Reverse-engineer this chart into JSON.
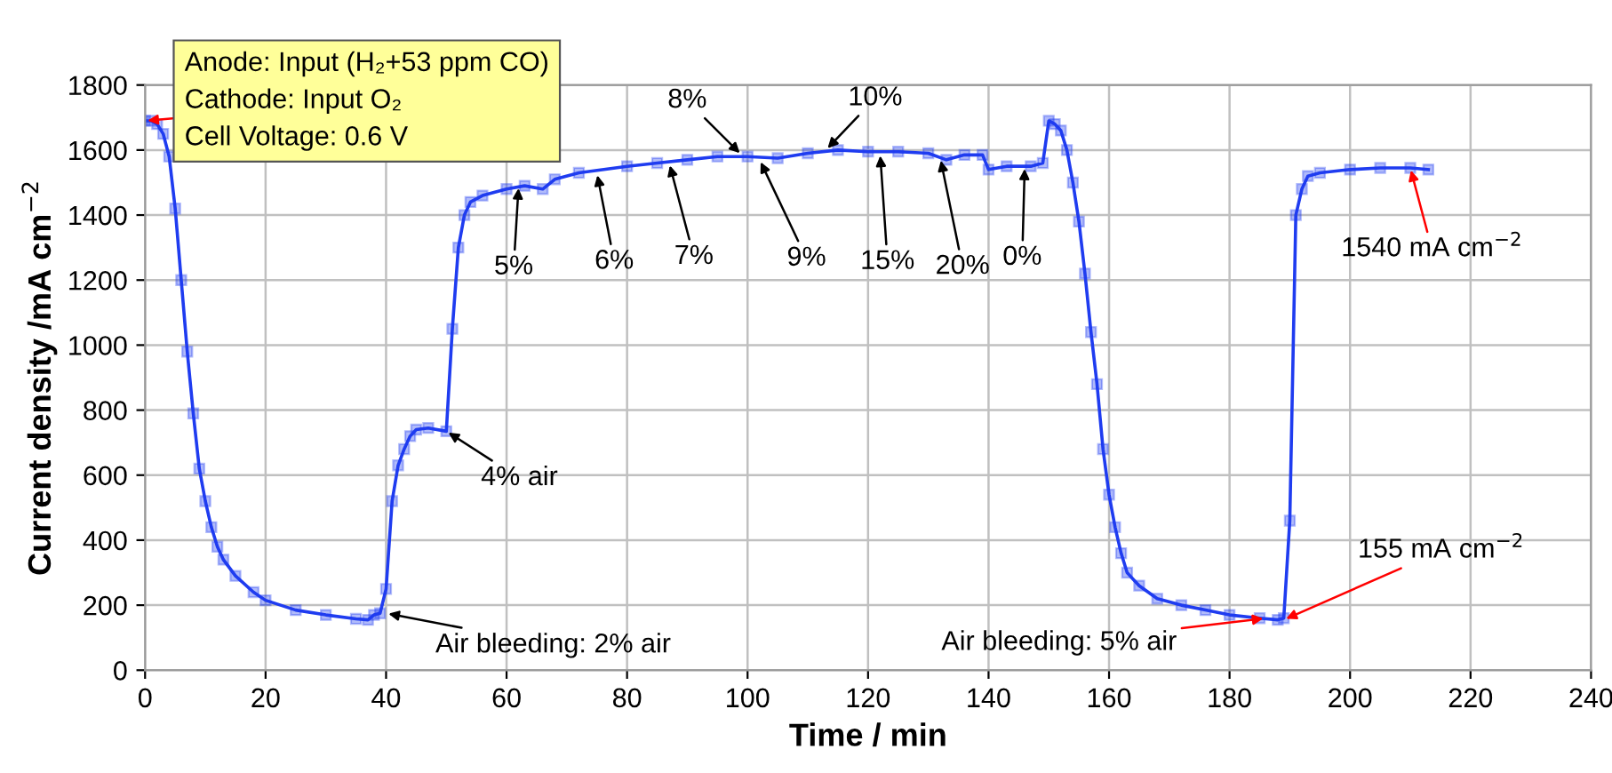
{
  "chart_data": {
    "type": "line",
    "xlabel": "Time / min",
    "ylabel": "Current density /mA cm$^{−2}$",
    "xlim": [
      0,
      240
    ],
    "ylim": [
      0,
      1800
    ],
    "xticks": [
      0,
      20,
      40,
      60,
      80,
      100,
      120,
      140,
      160,
      180,
      200,
      220,
      240
    ],
    "yticks": [
      0,
      200,
      400,
      600,
      800,
      1000,
      1200,
      1400,
      1600,
      1800
    ],
    "grid": true,
    "marker": "square",
    "line_style": "solid",
    "series": [
      {
        "color": "#1f3cf0",
        "x": [
          0,
          1,
          2,
          3,
          4,
          5,
          6,
          7,
          8,
          9,
          10,
          11,
          12,
          13,
          15,
          18,
          20,
          25,
          30,
          35,
          37,
          38,
          39,
          40,
          41,
          42,
          43,
          44,
          45,
          47,
          50,
          51,
          52,
          53,
          54,
          56,
          60,
          63,
          66,
          68,
          72,
          80,
          85,
          90,
          95,
          100,
          105,
          110,
          115,
          120,
          125,
          130,
          133,
          136,
          139,
          140,
          143,
          147,
          149,
          150,
          151,
          152,
          153,
          154,
          155,
          156,
          157,
          158,
          159,
          160,
          161,
          162,
          163,
          165,
          168,
          172,
          176,
          180,
          185,
          188,
          189,
          190,
          191,
          192,
          193,
          195,
          200,
          205,
          210,
          213
        ],
        "values": [
          1690,
          1690,
          1680,
          1650,
          1580,
          1420,
          1200,
          980,
          790,
          620,
          520,
          440,
          380,
          340,
          290,
          240,
          215,
          185,
          170,
          158,
          155,
          170,
          175,
          250,
          520,
          630,
          680,
          720,
          740,
          745,
          735,
          1050,
          1300,
          1400,
          1440,
          1460,
          1480,
          1490,
          1480,
          1510,
          1530,
          1550,
          1560,
          1570,
          1580,
          1580,
          1575,
          1590,
          1600,
          1595,
          1595,
          1590,
          1570,
          1585,
          1585,
          1540,
          1550,
          1550,
          1560,
          1690,
          1680,
          1660,
          1600,
          1500,
          1380,
          1220,
          1040,
          880,
          680,
          540,
          440,
          360,
          300,
          260,
          220,
          200,
          185,
          170,
          160,
          155,
          160,
          460,
          1400,
          1480,
          1520,
          1530,
          1540,
          1545,
          1545,
          1540
        ]
      }
    ],
    "annotations": [
      {
        "text": "Anode: Input (H₂+53 ppm CO)\nCathode: Input O₂\nCell Voltage: 0.6 V",
        "x": 0,
        "y": 1690
      },
      {
        "text": "Air bleeding: 2% air",
        "x": 40,
        "y": 175
      },
      {
        "text": "4% air",
        "x": 50,
        "y": 735
      },
      {
        "text": "5%",
        "x": 62,
        "y": 1490
      },
      {
        "text": "6%",
        "x": 75,
        "y": 1530
      },
      {
        "text": "7%",
        "x": 87,
        "y": 1560
      },
      {
        "text": "8%",
        "x": 99,
        "y": 1585
      },
      {
        "text": "9%",
        "x": 102,
        "y": 1570
      },
      {
        "text": "10%",
        "x": 113,
        "y": 1600
      },
      {
        "text": "15%",
        "x": 122,
        "y": 1590
      },
      {
        "text": "20%",
        "x": 132,
        "y": 1575
      },
      {
        "text": "0%",
        "x": 146,
        "y": 1550
      },
      {
        "text": "155 mA cm$^{−2}$",
        "x": 189,
        "y": 155
      },
      {
        "text": "1540 mA cm$^{−2}$",
        "x": 210,
        "y": 1545
      },
      {
        "text": "Air bleeding: 5% air",
        "x": 186,
        "y": 160
      }
    ]
  }
}
